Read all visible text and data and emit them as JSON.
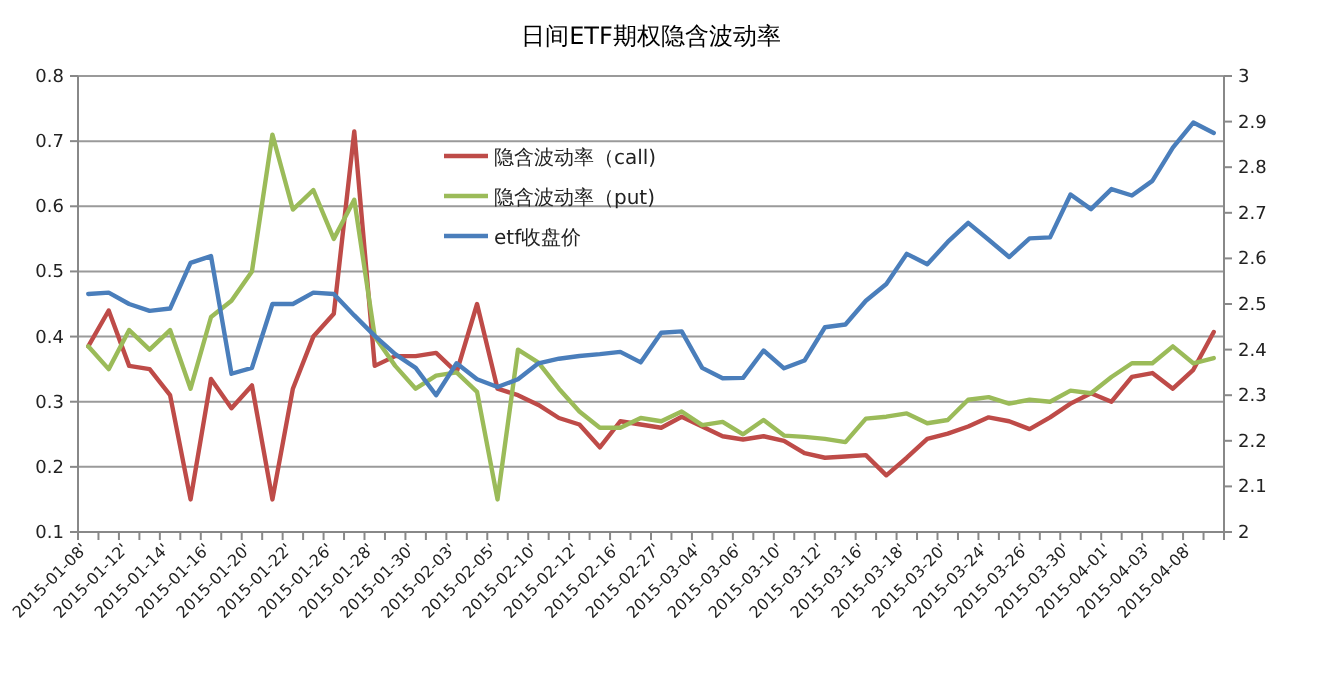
{
  "chart_data": {
    "type": "line",
    "title": "日间ETF期权隐含波动率",
    "categories": [
      "2015-01-08'",
      null,
      "2015-01-12'",
      null,
      "2015-01-14'",
      null,
      "2015-01-16'",
      null,
      "2015-01-20'",
      null,
      "2015-01-22'",
      null,
      "2015-01-26'",
      null,
      "2015-01-28'",
      null,
      "2015-01-30'",
      null,
      "2015-02-03'",
      null,
      "2015-02-05'",
      null,
      "2015-02-10'",
      null,
      "2015-02-12'",
      null,
      "2015-02-16'",
      null,
      "2015-02-27'",
      null,
      "2015-03-04'",
      null,
      "2015-03-06'",
      null,
      "2015-03-10'",
      null,
      "2015-03-12'",
      null,
      "2015-03-16'",
      null,
      "2015-03-18'",
      null,
      "2015-03-20'",
      null,
      "2015-03-24'",
      null,
      "2015-03-26'",
      null,
      "2015-03-30'",
      null,
      "2015-04-01'",
      null,
      "2015-04-03'",
      null,
      "2015-04-08'",
      null
    ],
    "series": [
      {
        "name": "隐含波动率（call)",
        "color": "#be4b48",
        "values": [
          0.385,
          0.44,
          0.355,
          0.35,
          0.31,
          0.15,
          0.335,
          0.29,
          0.325,
          0.15,
          0.32,
          0.4,
          0.435,
          0.715,
          0.355,
          0.37,
          0.37,
          0.375,
          0.345,
          0.45,
          0.32,
          0.31,
          0.295,
          0.275,
          0.265,
          0.23,
          0.27,
          0.265,
          0.26,
          0.277,
          0.262,
          0.247,
          0.242,
          0.247,
          0.24,
          0.221,
          0.214,
          0.216,
          0.218,
          0.187,
          0.214,
          0.243,
          0.251,
          0.262,
          0.276,
          0.27,
          0.258,
          0.276,
          0.297,
          0.313,
          0.3,
          0.338,
          0.344,
          0.32,
          0.349,
          0.407
        ]
      },
      {
        "name": "隐含波动率（put)",
        "color": "#9bbb59",
        "values": [
          0.385,
          0.35,
          0.41,
          0.38,
          0.41,
          0.32,
          0.43,
          0.455,
          0.5,
          0.71,
          0.595,
          0.625,
          0.55,
          0.61,
          0.4,
          0.355,
          0.32,
          0.34,
          0.345,
          0.315,
          0.15,
          0.38,
          0.36,
          0.32,
          0.285,
          0.26,
          0.26,
          0.275,
          0.27,
          0.285,
          0.264,
          0.269,
          0.25,
          0.272,
          0.248,
          0.246,
          0.243,
          0.238,
          0.274,
          0.277,
          0.282,
          0.267,
          0.272,
          0.303,
          0.307,
          0.297,
          0.303,
          0.3,
          0.317,
          0.313,
          0.338,
          0.359,
          0.359,
          0.385,
          0.359,
          0.367
        ]
      },
      {
        "name": "etf收盘价",
        "color": "#4a7ebb",
        "axis": "y2",
        "values": [
          2.522,
          2.525,
          2.5,
          2.485,
          2.49,
          2.59,
          2.605,
          2.347,
          2.36,
          2.5,
          2.5,
          2.525,
          2.522,
          2.475,
          2.43,
          2.39,
          2.36,
          2.3,
          2.37,
          2.335,
          2.318,
          2.335,
          2.37,
          2.38,
          2.386,
          2.39,
          2.395,
          2.372,
          2.437,
          2.44,
          2.36,
          2.337,
          2.338,
          2.398,
          2.359,
          2.376,
          2.449,
          2.455,
          2.507,
          2.544,
          2.61,
          2.587,
          2.636,
          2.678,
          2.641,
          2.603,
          2.644,
          2.646,
          2.74,
          2.708,
          2.752,
          2.738,
          2.77,
          2.843,
          2.898,
          2.875
        ]
      }
    ],
    "ylim": [
      0.1,
      0.8
    ],
    "yticks": [
      0.1,
      0.2,
      0.3,
      0.4,
      0.5,
      0.6,
      0.7,
      0.8
    ],
    "y2lim": [
      2,
      3
    ],
    "y2ticks": [
      2,
      2.1,
      2.2,
      2.3,
      2.4,
      2.5,
      2.6,
      2.7,
      2.8,
      2.9,
      3
    ],
    "grid": "y",
    "legend": "top"
  }
}
